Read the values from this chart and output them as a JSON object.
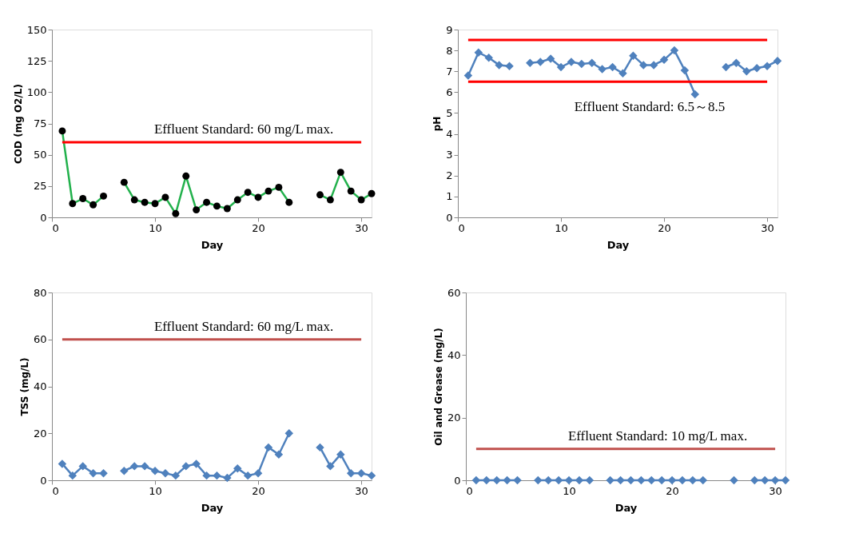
{
  "chart_data": [
    {
      "type": "line",
      "xlabel": "Day",
      "ylabel": "COD (mg O2/L)",
      "x": [
        1,
        2,
        3,
        4,
        5,
        6,
        7,
        8,
        9,
        10,
        11,
        12,
        13,
        14,
        15,
        16,
        17,
        18,
        19,
        20,
        21,
        22,
        23,
        24,
        25,
        26,
        27,
        28,
        29,
        30,
        31
      ],
      "series": [
        {
          "color": "#22b14c",
          "values": [
            69,
            11,
            15,
            10,
            17,
            null,
            28,
            14,
            12,
            11,
            16,
            3,
            33,
            6,
            12,
            9,
            7,
            14,
            20,
            16,
            21,
            24,
            12,
            null,
            null,
            18,
            14,
            36,
            21,
            14,
            19
          ]
        }
      ],
      "marker": "circle",
      "xlim": [
        0,
        31
      ],
      "xticks": [
        0,
        10,
        20,
        30
      ],
      "ylim": [
        0,
        150
      ],
      "yticks": [
        0,
        25,
        50,
        75,
        100,
        125,
        150
      ],
      "grid": false,
      "ref_lines": [
        {
          "axis": "y",
          "value": 60,
          "label": "Effluent Standard: 60 mg/L max.",
          "color": "#ff0000"
        }
      ]
    },
    {
      "type": "line",
      "xlabel": "Day",
      "ylabel": "pH",
      "x": [
        1,
        2,
        3,
        4,
        5,
        6,
        7,
        8,
        9,
        10,
        11,
        12,
        13,
        14,
        15,
        16,
        17,
        18,
        19,
        20,
        21,
        22,
        23,
        24,
        25,
        26,
        27,
        28,
        29,
        30,
        31
      ],
      "series": [
        {
          "color": "#4f81bd",
          "values": [
            6.8,
            7.9,
            7.65,
            7.3,
            7.25,
            null,
            7.4,
            7.45,
            7.6,
            7.2,
            7.45,
            7.35,
            7.4,
            7.1,
            7.2,
            6.9,
            7.75,
            7.3,
            7.3,
            7.55,
            8.0,
            7.05,
            5.9,
            null,
            null,
            7.2,
            7.4,
            7.0,
            7.15,
            7.25,
            7.5
          ]
        }
      ],
      "marker": "diamond",
      "xlim": [
        0,
        31
      ],
      "xticks": [
        0,
        10,
        20,
        30
      ],
      "ylim": [
        0,
        9
      ],
      "yticks": [
        0,
        1,
        2,
        3,
        4,
        5,
        6,
        7,
        8,
        9
      ],
      "grid": false,
      "ref_lines": [
        {
          "axis": "y",
          "value": 8.5,
          "color": "#ff0000"
        },
        {
          "axis": "y",
          "value": 6.5,
          "label": "Effluent Standard: 6.5～8.5",
          "color": "#ff0000"
        }
      ]
    },
    {
      "type": "line",
      "xlabel": "Day",
      "ylabel": "TSS (mg/L)",
      "x": [
        1,
        2,
        3,
        4,
        5,
        6,
        7,
        8,
        9,
        10,
        11,
        12,
        13,
        14,
        15,
        16,
        17,
        18,
        19,
        20,
        21,
        22,
        23,
        24,
        25,
        26,
        27,
        28,
        29,
        30,
        31
      ],
      "series": [
        {
          "color": "#4f81bd",
          "values": [
            7,
            2,
            6,
            3,
            3,
            null,
            4,
            6,
            6,
            4,
            3,
            2,
            6,
            7,
            2,
            2,
            1,
            5,
            2,
            3,
            14,
            11,
            20,
            null,
            null,
            14,
            6,
            11,
            3,
            3,
            2
          ]
        }
      ],
      "marker": "diamond",
      "xlim": [
        0,
        31
      ],
      "xticks": [
        0,
        10,
        20,
        30
      ],
      "ylim": [
        0,
        80
      ],
      "yticks": [
        0,
        20,
        40,
        60,
        80
      ],
      "grid": false,
      "ref_lines": [
        {
          "axis": "y",
          "value": 60,
          "label": "Effluent Standard: 60 mg/L max.",
          "color": "#c0504d"
        }
      ]
    },
    {
      "type": "line",
      "xlabel": "Day",
      "ylabel": "Oil and Grease (mg/L)",
      "x": [
        1,
        2,
        3,
        4,
        5,
        6,
        7,
        8,
        9,
        10,
        11,
        12,
        13,
        14,
        15,
        16,
        17,
        18,
        19,
        20,
        21,
        22,
        23,
        24,
        25,
        26,
        27,
        28,
        29,
        30,
        31
      ],
      "series": [
        {
          "color": "#4f81bd",
          "values": [
            0,
            0,
            0,
            0,
            0,
            null,
            0,
            0,
            0,
            0,
            0,
            0,
            null,
            0,
            0,
            0,
            0,
            0,
            0,
            0,
            0,
            0,
            0,
            null,
            null,
            0,
            null,
            0,
            0,
            0,
            0
          ]
        }
      ],
      "marker": "diamond",
      "xlim": [
        0,
        31
      ],
      "xticks": [
        0,
        10,
        20,
        30
      ],
      "ylim": [
        0,
        60
      ],
      "yticks": [
        0,
        20,
        40,
        60
      ],
      "grid": false,
      "ref_lines": [
        {
          "axis": "y",
          "value": 10,
          "label": "Effluent Standard: 10 mg/L max.",
          "color": "#c0504d"
        }
      ]
    }
  ]
}
